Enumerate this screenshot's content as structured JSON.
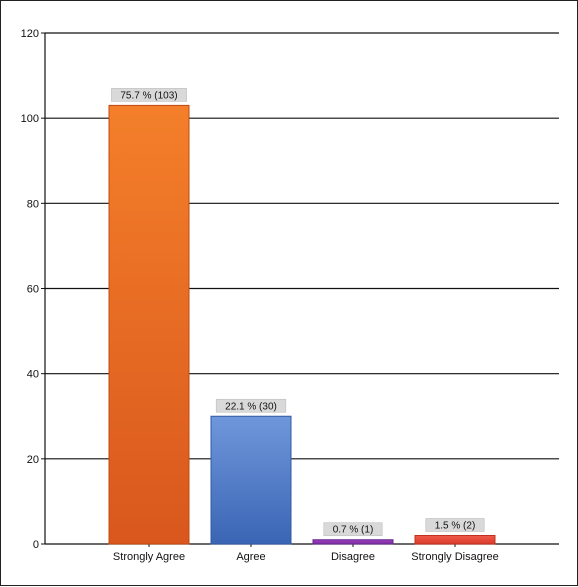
{
  "chart_data": {
    "type": "bar",
    "categories": [
      "Strongly Agree",
      "Agree",
      "Disagree",
      "Strongly Disagree"
    ],
    "values": [
      103,
      30,
      1,
      2
    ],
    "data_labels": [
      "75.7 % (103)",
      "22.1 % (30)",
      "0.7 % (1)",
      "1.5 % (2)"
    ],
    "ylim": [
      0,
      120
    ],
    "yticks": [
      0,
      20,
      40,
      60,
      80,
      100,
      120
    ],
    "grid": true,
    "legend": "none",
    "colors": {
      "bars": [
        {
          "top": "#f47f2a",
          "bottom": "#d9571d",
          "edge": "#c24a12"
        },
        {
          "top": "#6f97db",
          "bottom": "#3a65b4",
          "edge": "#2f5aa3"
        },
        {
          "top": "#9b3fc0",
          "bottom": "#7a2da0",
          "edge": "#6a2590"
        },
        {
          "top": "#f05a4a",
          "bottom": "#d83a2a",
          "edge": "#c0301f"
        }
      ],
      "grid": "#111111",
      "label_box": "#d9d9d9"
    }
  }
}
